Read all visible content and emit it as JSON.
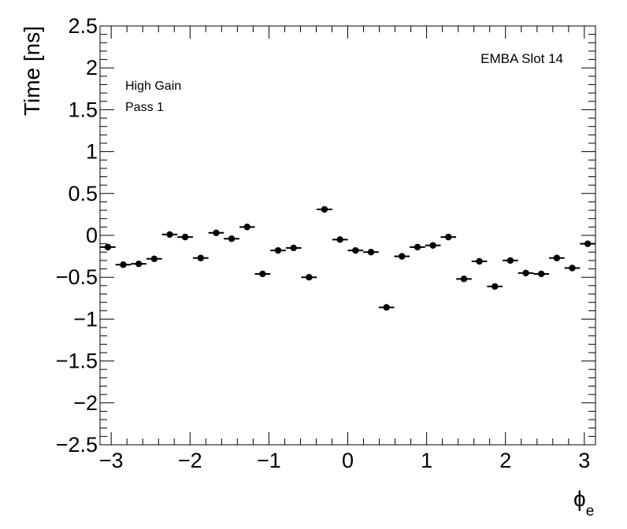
{
  "chart_data": {
    "type": "scatter",
    "title": "EMBA Slot 14",
    "annotations": [
      "High Gain",
      "Pass 1"
    ],
    "xlabel": "ϕ",
    "xlabel_subscript": "e",
    "ylabel": "Time [ns]",
    "xlim": [
      -3.1416,
      3.1416
    ],
    "ylim": [
      -2.5,
      2.5
    ],
    "x_ticks": [
      -3,
      -2,
      -1,
      0,
      1,
      2,
      3
    ],
    "x_tick_labels": [
      "−3",
      "−2",
      "−1",
      "0",
      "1",
      "2",
      "3"
    ],
    "y_ticks": [
      -2.5,
      -2,
      -1.5,
      -1,
      -0.5,
      0,
      0.5,
      1,
      1.5,
      2,
      2.5
    ],
    "y_tick_labels": [
      "−2.5",
      "−2",
      "−1.5",
      "−1",
      "−0.5",
      "0",
      "0.5",
      "1",
      "1.5",
      "2",
      "2.5"
    ],
    "grid": false,
    "x_bin_halfwidth": 0.0982,
    "series": [
      {
        "x": [
          -3.043,
          -2.847,
          -2.651,
          -2.454,
          -2.258,
          -2.062,
          -1.865,
          -1.669,
          -1.473,
          -1.276,
          -1.08,
          -0.884,
          -0.687,
          -0.491,
          -0.295,
          -0.098,
          0.098,
          0.295,
          0.491,
          0.687,
          0.884,
          1.08,
          1.276,
          1.473,
          1.669,
          1.865,
          2.062,
          2.258,
          2.454,
          2.651,
          2.847,
          3.043
        ],
        "y": [
          -0.14,
          -0.35,
          -0.34,
          -0.28,
          0.01,
          -0.02,
          -0.27,
          0.03,
          -0.04,
          0.1,
          -0.46,
          -0.18,
          -0.15,
          -0.5,
          0.31,
          -0.05,
          -0.18,
          -0.2,
          -0.86,
          -0.25,
          -0.14,
          -0.12,
          -0.02,
          -0.52,
          -0.31,
          -0.61,
          -0.3,
          -0.45,
          -0.46,
          -0.27,
          -0.39,
          -0.1
        ]
      }
    ]
  }
}
